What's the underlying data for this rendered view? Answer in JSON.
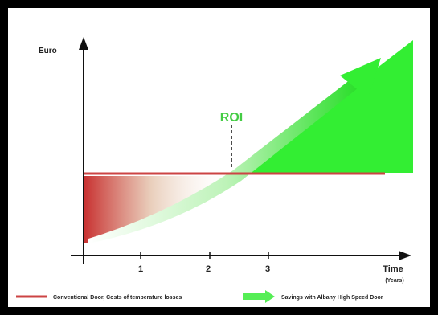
{
  "chart_data": {
    "type": "area",
    "x_axis": {
      "label": "Time",
      "unit_label": "(Years)",
      "ticks": [
        "1",
        "2",
        "3"
      ]
    },
    "y_axis": {
      "label": "Euro"
    },
    "annotation": {
      "text": "ROI",
      "x": 2.4
    },
    "series": [
      {
        "name": "Conventional Door, Costs of temperature losses",
        "type": "line",
        "color": "#cc4444"
      },
      {
        "name": "Savings with Albany High Speed Door",
        "type": "area",
        "color": "#44ee44"
      }
    ]
  },
  "colors": {
    "frame": "#000000",
    "axis": "#111111",
    "conventional_line": "#cc4444",
    "red_area": "#cc3333",
    "savings_green": "#33ee33",
    "roi_text": "#44cc44"
  }
}
